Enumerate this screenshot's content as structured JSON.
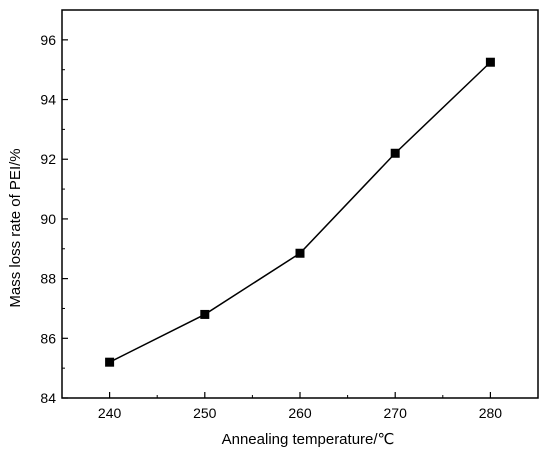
{
  "chart_data": {
    "type": "line",
    "title": "",
    "xlabel": "Annealing temperature/℃",
    "ylabel": "Mass loss rate of PEI/%",
    "x": [
      240,
      250,
      260,
      270,
      280
    ],
    "series": [
      {
        "values": [
          85.2,
          86.8,
          88.85,
          92.2,
          95.25
        ]
      }
    ],
    "xlim": [
      235,
      285
    ],
    "ylim": [
      84,
      97
    ],
    "xticks": [
      "240",
      "250",
      "260",
      "270",
      "280"
    ],
    "yticks": [
      "84",
      "86",
      "88",
      "90",
      "92",
      "94",
      "96"
    ],
    "marker": "square",
    "line_color": "#000000",
    "marker_color": "#000000",
    "grid": false,
    "legend": "none"
  }
}
